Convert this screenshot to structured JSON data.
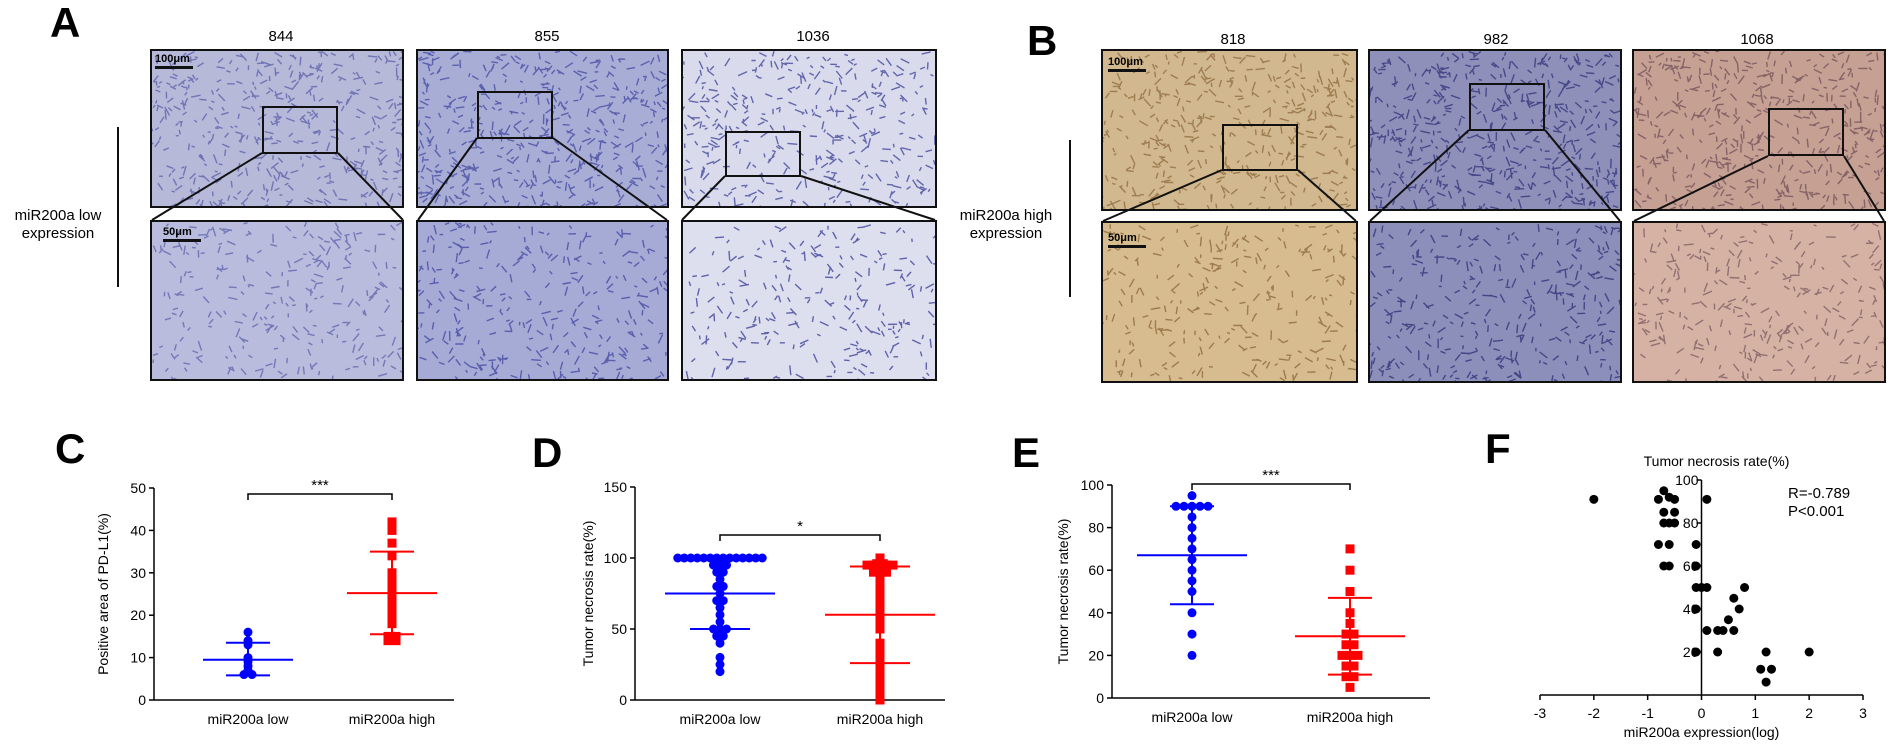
{
  "panels": {
    "A": {
      "label": "A",
      "samples": [
        "844",
        "855",
        "1036"
      ],
      "row_label": [
        "miR200a low",
        "expression"
      ],
      "scale_top": "100μm",
      "scale_bottom": "50μm"
    },
    "B": {
      "label": "B",
      "samples": [
        "818",
        "982",
        "1068"
      ],
      "row_label": [
        "miR200a high",
        "expression"
      ],
      "scale_top": "100μm",
      "scale_bottom": "50μm"
    },
    "C": {
      "label": "C"
    },
    "D": {
      "label": "D"
    },
    "E": {
      "label": "E"
    },
    "F": {
      "label": "F"
    }
  },
  "colors": {
    "low": "#0000ff",
    "high": "#ff0000",
    "corr": "#000000"
  },
  "chart_data": [
    {
      "id": "C",
      "type": "scatter",
      "ylabel": "Positive area of PD-L1(%)",
      "categories": [
        "miR200a low",
        "miR200a high"
      ],
      "ylim": [
        0,
        50
      ],
      "yticks": [
        0,
        10,
        20,
        30,
        40,
        50
      ],
      "significance": "***",
      "series": [
        {
          "values": [
            16,
            14,
            13,
            10,
            9,
            8,
            7,
            6,
            6
          ],
          "mean": 9.5,
          "sd_low": 5.8,
          "sd_high": 13.5
        },
        {
          "values": [
            42,
            40,
            37,
            34,
            30,
            28,
            26,
            24,
            22,
            20,
            18,
            15,
            14,
            14,
            15
          ],
          "mean": 25.2,
          "sd_low": 15.5,
          "sd_high": 35
        }
      ]
    },
    {
      "id": "D",
      "type": "scatter",
      "ylabel": "Tumor necrosis rate(%)",
      "categories": [
        "miR200a low",
        "miR200a high"
      ],
      "ylim": [
        0,
        150
      ],
      "yticks": [
        0,
        50,
        100,
        150
      ],
      "significance": "*",
      "series": [
        {
          "values": [
            100,
            100,
            100,
            100,
            100,
            100,
            100,
            100,
            100,
            100,
            100,
            100,
            100,
            100,
            95,
            95,
            95,
            90,
            90,
            85,
            80,
            80,
            75,
            70,
            70,
            65,
            60,
            55,
            50,
            50,
            50,
            45,
            45,
            40,
            30,
            25,
            20
          ],
          "mean": 75,
          "sd_low": 50,
          "sd_high": 100
        },
        {
          "values": [
            100,
            98,
            97,
            96,
            96,
            95,
            95,
            95,
            95,
            95,
            90,
            90,
            90,
            85,
            80,
            75,
            70,
            65,
            60,
            55,
            50,
            40,
            35,
            30,
            25,
            20,
            15,
            10,
            5,
            0
          ],
          "mean": 60,
          "sd_low": 26,
          "sd_high": 94
        }
      ]
    },
    {
      "id": "E",
      "type": "scatter",
      "ylabel": "Tumor necrosis rate(%)",
      "categories": [
        "miR200a low",
        "miR200a high"
      ],
      "ylim": [
        0,
        100
      ],
      "yticks": [
        0,
        20,
        40,
        60,
        80,
        100
      ],
      "significance": "***",
      "series": [
        {
          "values": [
            95,
            90,
            90,
            90,
            90,
            90,
            85,
            80,
            75,
            70,
            65,
            60,
            55,
            50,
            40,
            30,
            20
          ],
          "mean": 67,
          "sd_low": 44,
          "sd_high": 90
        },
        {
          "values": [
            70,
            60,
            50,
            40,
            35,
            30,
            30,
            25,
            25,
            20,
            20,
            20,
            15,
            15,
            10,
            10,
            5
          ],
          "mean": 29,
          "sd_low": 11,
          "sd_high": 47
        }
      ]
    },
    {
      "id": "F",
      "type": "scatter",
      "title": "Tumor necrosis rate(%)",
      "xlabel": "miR200a expression(log)",
      "xlim": [
        -3,
        3
      ],
      "ylim": [
        0,
        100
      ],
      "xticks": [
        -3,
        -2,
        -1,
        0,
        1,
        2,
        3
      ],
      "yticks": [
        20,
        40,
        60,
        80,
        100
      ],
      "stats": [
        "R=-0.789",
        "P<0.001"
      ],
      "points": [
        [
          -2.0,
          91
        ],
        [
          -0.7,
          95
        ],
        [
          -0.6,
          92
        ],
        [
          -0.8,
          91
        ],
        [
          -0.5,
          91
        ],
        [
          0.1,
          91
        ],
        [
          -0.7,
          85
        ],
        [
          -0.5,
          85
        ],
        [
          -0.7,
          80
        ],
        [
          -0.6,
          80
        ],
        [
          -0.5,
          80
        ],
        [
          -0.8,
          70
        ],
        [
          -0.6,
          70
        ],
        [
          -0.1,
          70
        ],
        [
          -0.7,
          60
        ],
        [
          -0.6,
          60
        ],
        [
          -0.1,
          60
        ],
        [
          -0.1,
          50
        ],
        [
          0.0,
          50
        ],
        [
          0.1,
          50
        ],
        [
          0.8,
          50
        ],
        [
          0.6,
          45
        ],
        [
          -0.1,
          40
        ],
        [
          0.7,
          40
        ],
        [
          0.5,
          35
        ],
        [
          0.1,
          30
        ],
        [
          0.3,
          30
        ],
        [
          0.4,
          30
        ],
        [
          0.6,
          30
        ],
        [
          -0.1,
          20
        ],
        [
          0.3,
          20
        ],
        [
          1.2,
          20
        ],
        [
          2.0,
          20
        ],
        [
          1.1,
          12
        ],
        [
          1.3,
          12
        ],
        [
          1.2,
          6
        ]
      ]
    }
  ]
}
